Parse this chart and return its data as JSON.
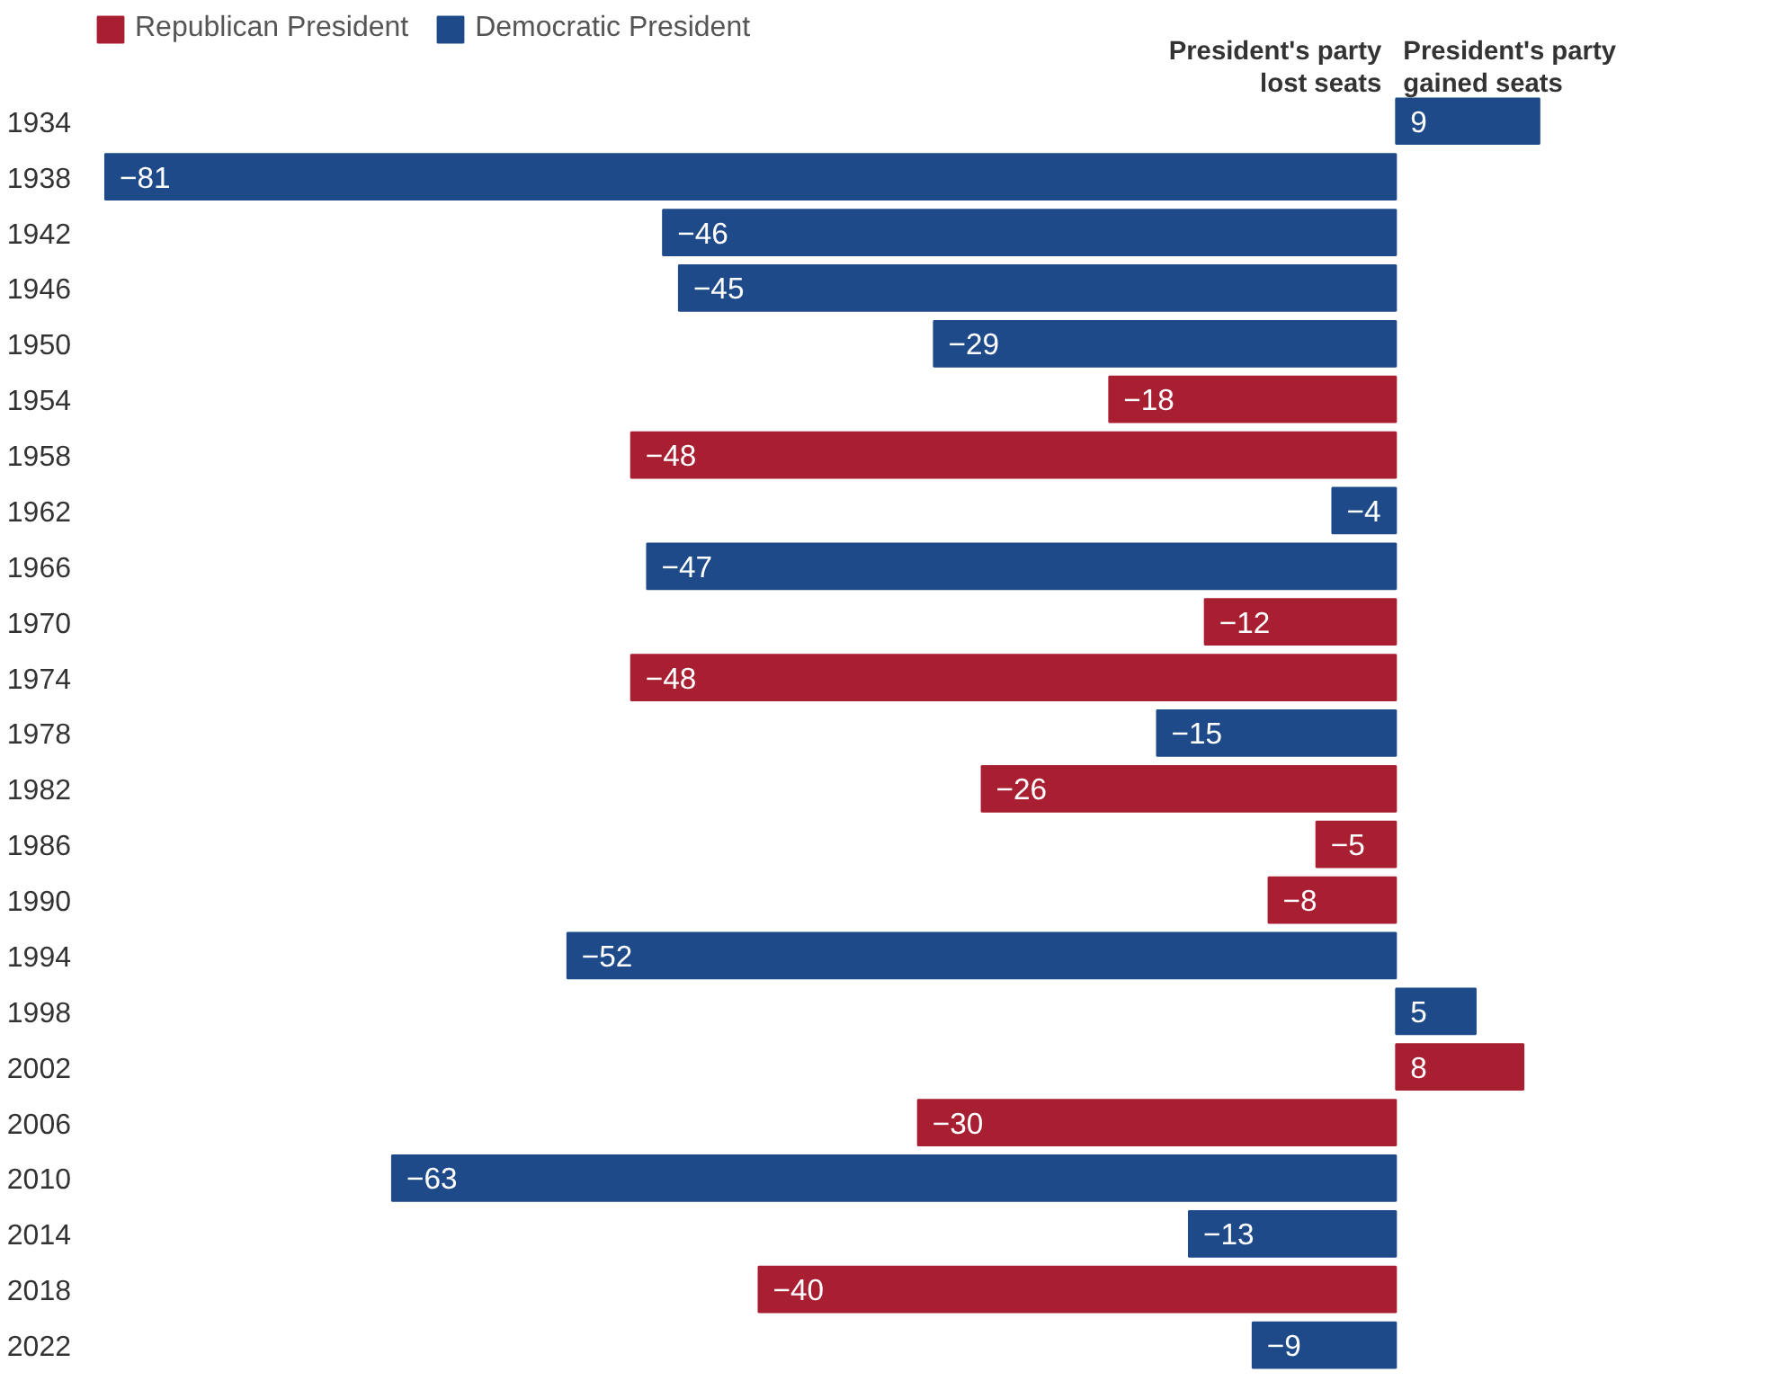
{
  "chart_data": {
    "type": "bar",
    "orientation": "horizontal",
    "data_labels": true,
    "legend": "top left",
    "grid": false,
    "categories": [
      "1934",
      "1938",
      "1942",
      "1946",
      "1950",
      "1954",
      "1958",
      "1962",
      "1966",
      "1970",
      "1974",
      "1978",
      "1982",
      "1986",
      "1990",
      "1994",
      "1998",
      "2002",
      "2006",
      "2010",
      "2014",
      "2018",
      "2022"
    ],
    "series": [
      {
        "name": "Republican President",
        "color": "#a91f32",
        "values": [
          null,
          null,
          null,
          null,
          null,
          -18,
          -48,
          null,
          null,
          -12,
          -48,
          null,
          -26,
          -5,
          -8,
          null,
          null,
          8,
          -30,
          null,
          null,
          -40,
          null
        ]
      },
      {
        "name": "Democratic President",
        "color": "#1f4a8a",
        "values": [
          9,
          -81,
          -46,
          -45,
          -29,
          null,
          null,
          -4,
          -47,
          null,
          null,
          -15,
          null,
          null,
          null,
          -52,
          5,
          null,
          null,
          -63,
          -13,
          null,
          -9
        ]
      }
    ],
    "annotations": [
      "President's party\nlost seats",
      "President's party\ngained seats"
    ]
  }
}
